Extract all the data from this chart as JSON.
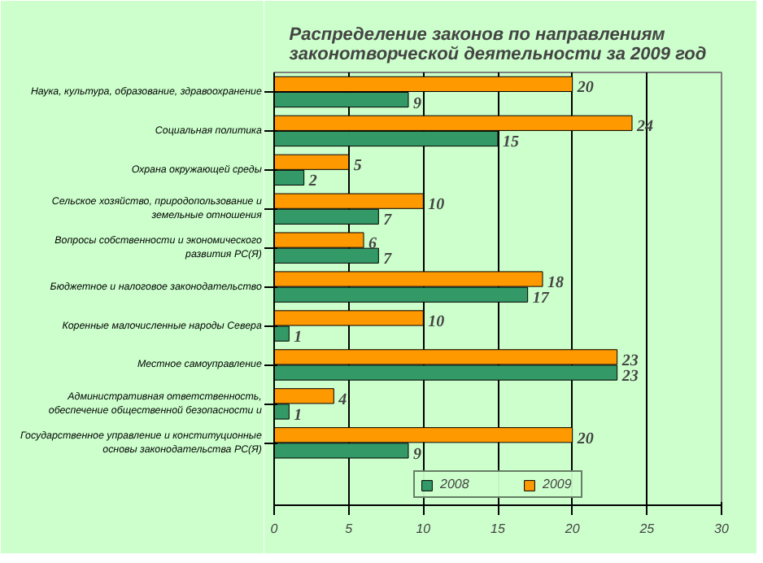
{
  "chart_data": {
    "type": "bar",
    "orientation": "horizontal",
    "title": "Распределение законов по направлениям\nзаконотворческой деятельности за 2009 год",
    "categories": [
      "Наука, культура, образование, здравоохранение",
      "Социальная политика",
      "Охрана окружающей среды",
      "Сельское хозяйство, природопользование и\nземельные отношения",
      "Вопросы собственности и экономического\nразвития РС(Я)",
      "Бюджетное и налоговое законодательство",
      "Коренные малочисленные народы Севера",
      "Местное самоуправление",
      "Административная ответственность,\nобеспечение общественной безопасности и",
      "Государственное управление и конституционные\nосновы законодательства РС(Я)"
    ],
    "series": [
      {
        "name": "2009",
        "color": "#ff9900",
        "values": [
          20,
          24,
          5,
          10,
          6,
          18,
          10,
          23,
          4,
          20
        ]
      },
      {
        "name": "2008",
        "color": "#339966",
        "values": [
          9,
          15,
          2,
          7,
          7,
          17,
          1,
          23,
          1,
          9
        ]
      }
    ],
    "xlim": [
      0,
      30
    ],
    "xticks": [
      0,
      5,
      10,
      15,
      20,
      25,
      30
    ],
    "grid": "x",
    "legend": "bottom",
    "data_labels": true
  }
}
